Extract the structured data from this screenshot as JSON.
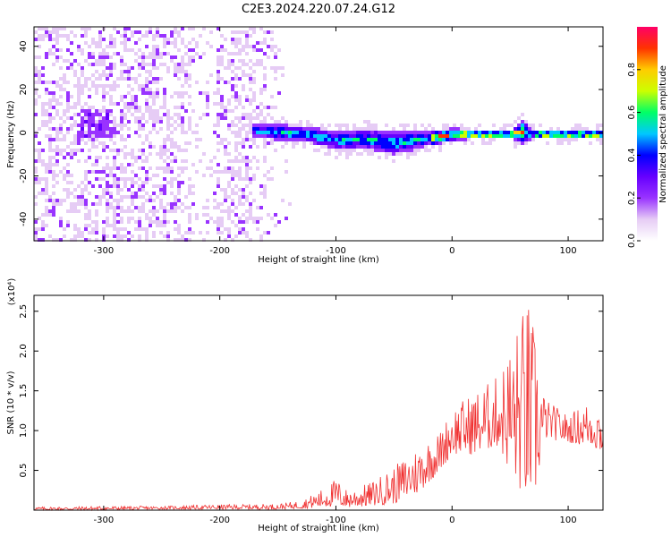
{
  "title": "C2E3.2024.220.07.24.G12",
  "chart_data": [
    {
      "type": "heatmap",
      "xlabel": "Height of straight line (km)",
      "ylabel": "Frequency (Hz)",
      "xlim": [
        -360,
        130
      ],
      "ylim": [
        -50,
        49
      ],
      "x_ticks": [
        -300,
        -200,
        -100,
        0,
        100
      ],
      "y_ticks": [
        -40,
        -20,
        0,
        20,
        40
      ],
      "colorbar": {
        "label": "Normalized spectral amplitude",
        "range": [
          0.0,
          1.0
        ],
        "ticks": [
          "0.0",
          "0.2",
          "0.4",
          "0.6",
          "0.8"
        ],
        "colormap": [
          "#ffffff",
          "#e6ccf5",
          "#9933ff",
          "#6600ff",
          "#0000ff",
          "#00c8ff",
          "#00ff66",
          "#ccff00",
          "#ffcc00",
          "#ff3300",
          "#ff0066"
        ]
      },
      "noise_region": [
        -360,
        -140
      ],
      "signal_ridge": {
        "x": [
          -175,
          -150,
          -125,
          -100,
          -75,
          -50,
          -25,
          0,
          25,
          50,
          60,
          70,
          100,
          130
        ],
        "y": [
          2,
          1,
          0,
          -3,
          -2,
          -4,
          -2,
          0,
          0,
          0,
          1,
          0,
          0,
          0
        ],
        "halfwidth": [
          3,
          4,
          4,
          5,
          5,
          6,
          4,
          3,
          2,
          2,
          6,
          2,
          2,
          2
        ]
      }
    },
    {
      "type": "line",
      "xlabel": "Height of straight line (km)",
      "ylabel": "SNR (10 * v/v)",
      "y_exponent": "(x10⁴)",
      "xlim": [
        -360,
        130
      ],
      "ylim": [
        0,
        2.7
      ],
      "x_ticks": [
        -300,
        -200,
        -100,
        0,
        100
      ],
      "y_ticks": [
        "0.5",
        "1.0",
        "1.5",
        "2.0",
        "2.5"
      ],
      "line_color": "#f03030",
      "envelope": {
        "x": [
          -360,
          -300,
          -250,
          -200,
          -150,
          -130,
          -110,
          -100,
          -90,
          -70,
          -50,
          -30,
          -10,
          0,
          20,
          40,
          55,
          65,
          72,
          80,
          100,
          120,
          130
        ],
        "upper": [
          0.04,
          0.05,
          0.05,
          0.07,
          0.08,
          0.12,
          0.28,
          0.4,
          0.25,
          0.35,
          0.55,
          0.8,
          1.0,
          1.3,
          1.5,
          1.7,
          2.3,
          2.7,
          2.2,
          1.4,
          1.2,
          1.4,
          1.3
        ],
        "lower": [
          0.0,
          0.0,
          0.01,
          0.01,
          0.01,
          0.02,
          0.03,
          0.05,
          0.03,
          0.05,
          0.08,
          0.2,
          0.5,
          0.7,
          0.7,
          0.8,
          0.3,
          0.1,
          0.2,
          0.9,
          0.85,
          0.8,
          0.7
        ]
      }
    }
  ]
}
